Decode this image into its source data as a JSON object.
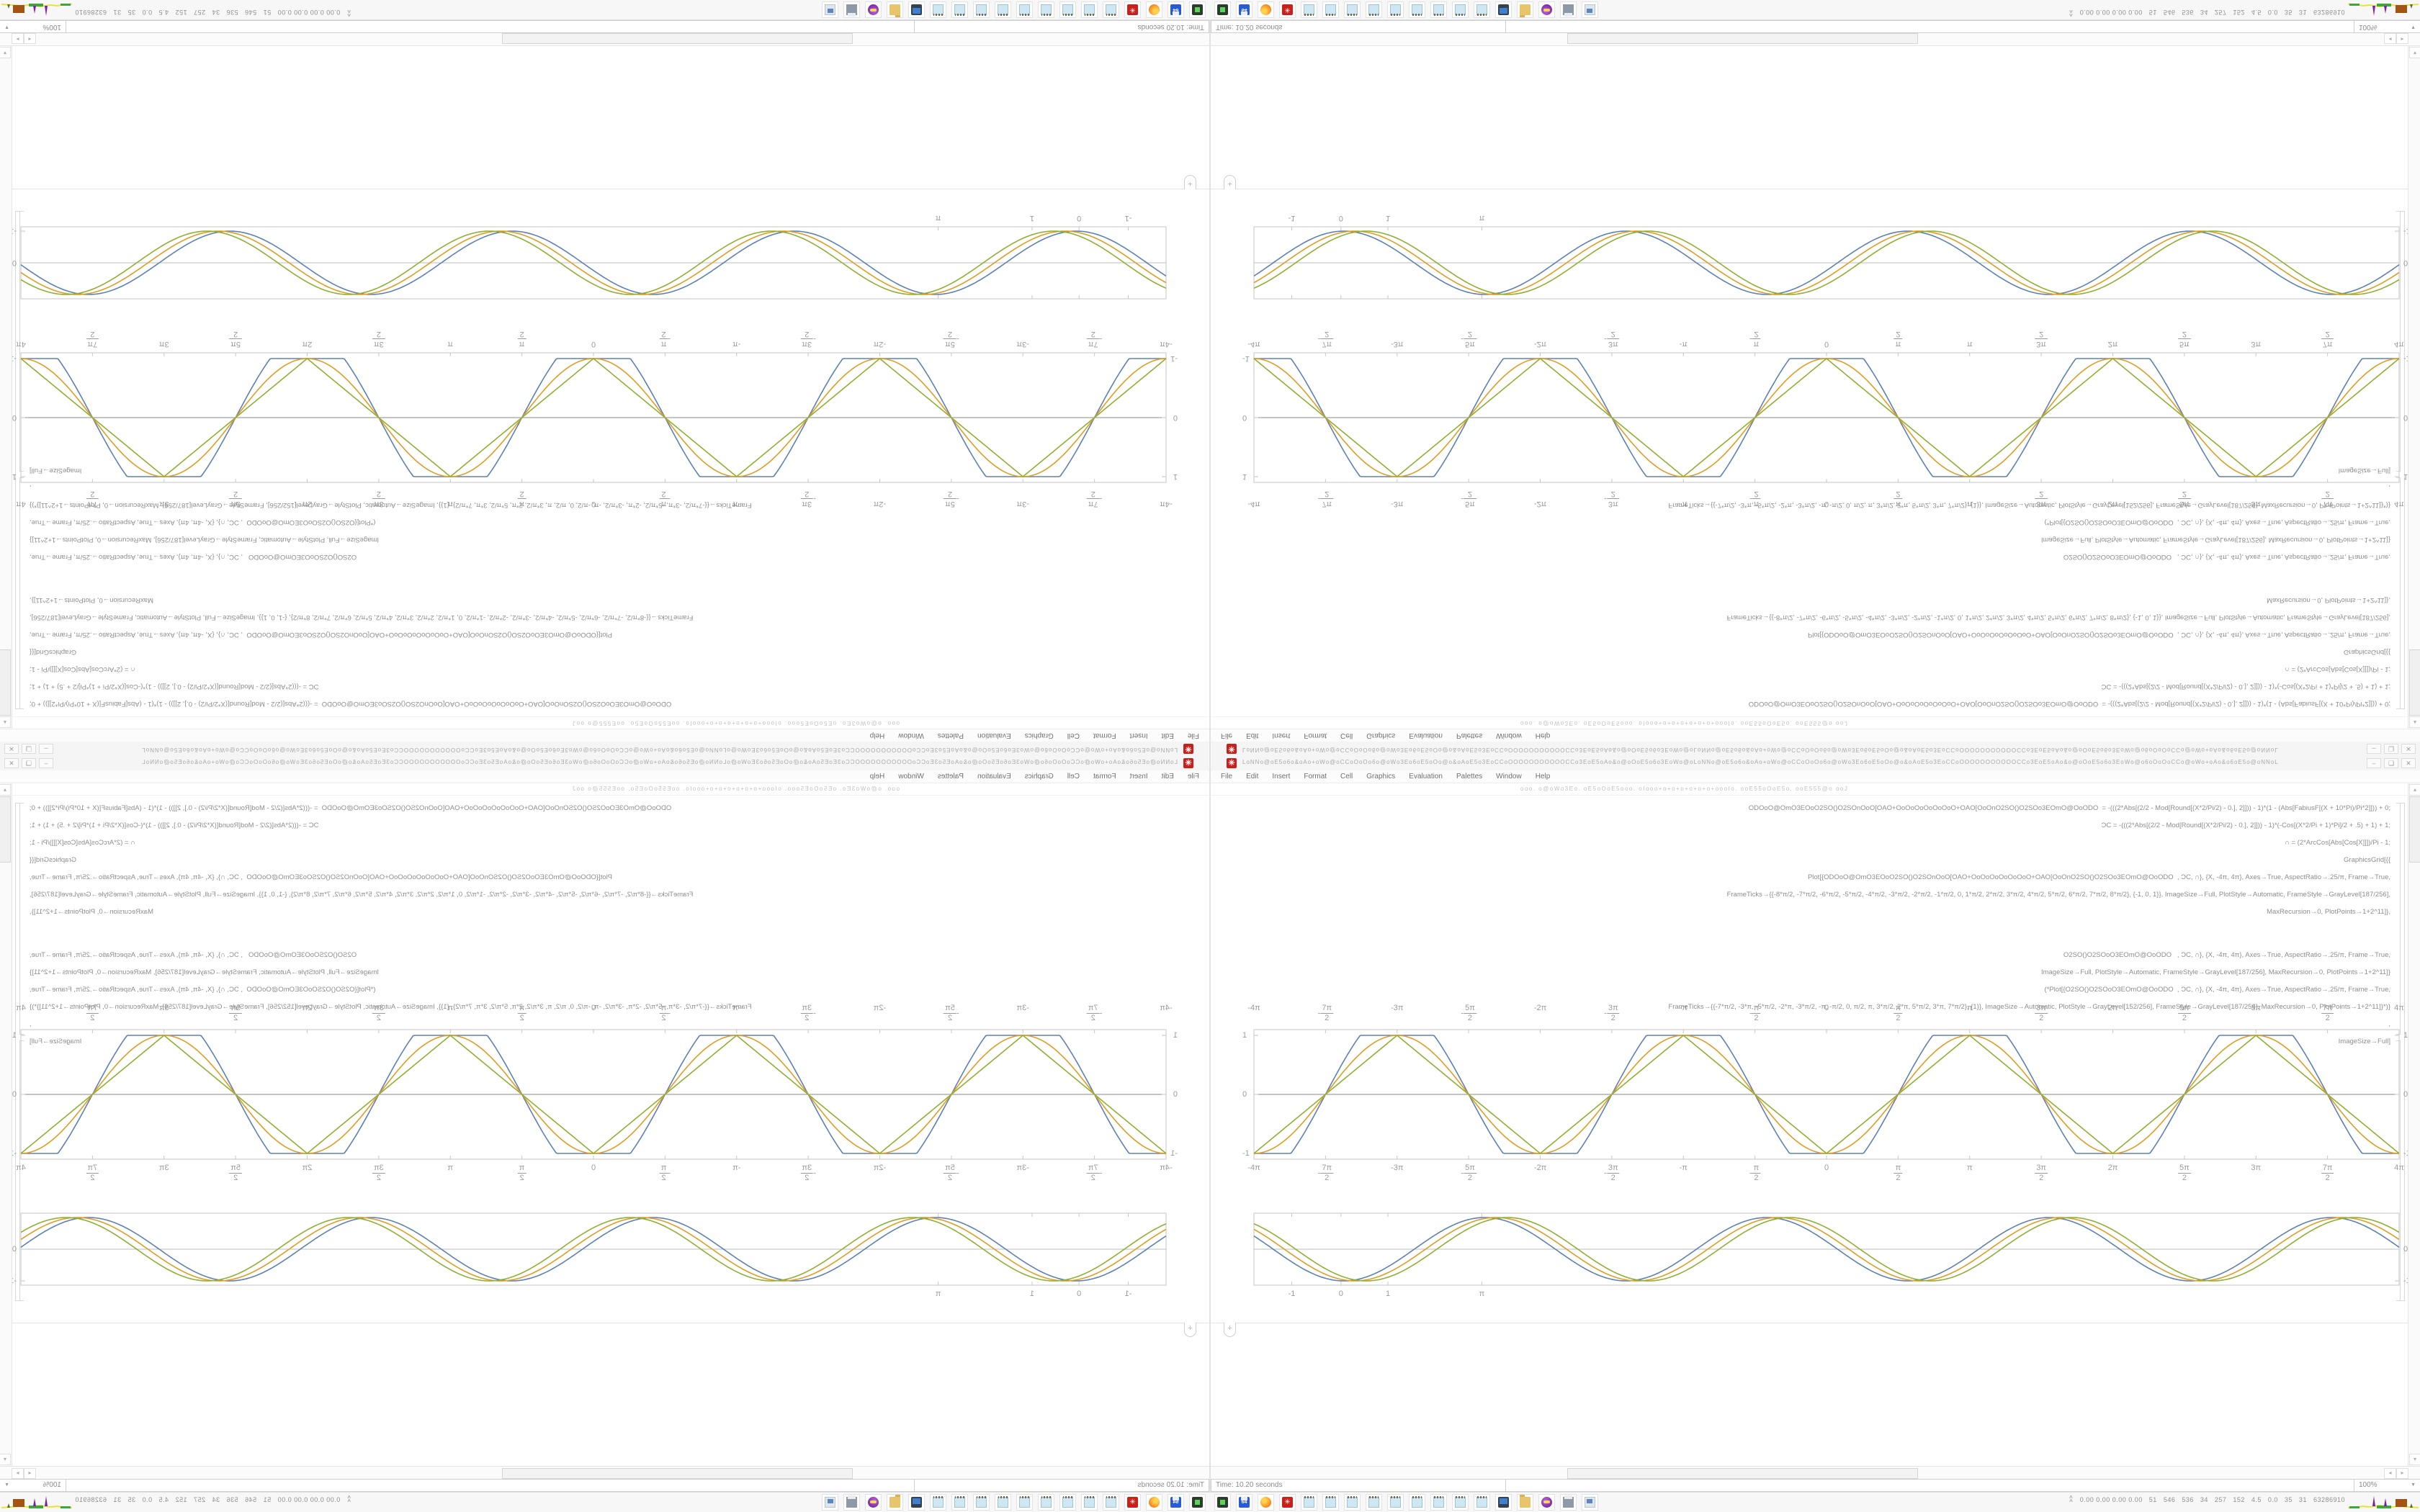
{
  "window": {
    "title_glyphs": "LoNNo@oE5o6o&oAo+oWo@oCCoOoOo6o@oWo3Eo6oE5oOo@o&oAoE5o3EoCCoOOOOOOOOOOOCCo3EoE5oAo&o@oOoE5o6o3EoWo@oLoNNo@oE5o6o&oAo+oWo@oCCoOoOo6o@oWo3Eo6oE5oOo@o&oAoE5o3EoCCoOOOOOOOOOOOCCo3EoE5oAo&o@oOoE5o6o3EoWo@o6oOoOoCCo@oWo+oAo&o6oE5o@oNNoL",
    "app_icon_glyph": "✳",
    "buttons": {
      "minimize": "–",
      "restore": "❏",
      "close": "✕"
    },
    "menu": [
      "File",
      "Edit",
      "Insert",
      "Format",
      "Cell",
      "Graphics",
      "Evaluation",
      "Palettes",
      "Window",
      "Help"
    ],
    "toolbar_glyphs": "ooo. o@oWo3Eo. oE5oOoE5ooo. oIooo+o+o+o+o+o+o+oooIo. ooE55oOoE5o. ooE555@o ooJ",
    "code_cell_1": [
      "ODOoO@OmO3EOoO2SO()O2SOnOoO[OAO+OoOoOoOoOoOoO+OAO[OoOnO2SO()O2SOo3EOmO@OoODO  = -(((2*Abs[(2/2 - Mod[Round[(X*2/Pi/2) - 0.], 2]])) - 1)*(1 - (Abs[FabiusF[(X + 10*Pi)/Pi*2]])) + 0;",
      "ƆC = -(((2*Abs[(2/2 - Mod[Round[(X*2/Pi/2) - 0.], 2]])) - 1)*(-Cos[(X*2/Pi + 1)*Pi]/2 + .5) + 1) + 1;",
      "∩ = (2*ArcCos[Abs[Cos[X]]])/Pi - 1;",
      "GraphicsGrid[{{",
      "Plot[{ODOoO@OmO3EOoO2SO()O2SOnOoO[OAO+OoOoOoOoOoOoO+OAO[OoOnO2SO()O2SOo3EOmO@OoODO  , ƆC, ∩}, {X, -4π, 4π}, Axes→True, AspectRatio→.25/π, Frame→True,",
      "FrameTicks→{{-8*π/2, -7*π/2, -6*π/2, -5*π/2, -4*π/2, -3*π/2, -2*π/2, -1*π/2, 0, 1*π/2, 2*π/2, 3*π/2, 4*π/2, 5*π/2, 6*π/2, 7*π/2, 8*π/2}, {-1, 0, 1}}, ImageSize→Full, PlotStyle→Automatic, FrameStyle→GrayLevel[187/256],",
      "MaxRecursion→0, PlotPoints→1+2^11]},"
    ],
    "code_cell_2": [
      "O2SO()O2SOoO3EOmO@OoODO   , ƆC, ∩}, {X, -4π, 4π}, Axes→True, AspectRatio→.25/π, Frame→True,",
      "ImageSize→Full, PlotStyle→Automatic, FrameStyle→GrayLevel[187/256], MaxRecursion→0, PlotPoints→1+2^11]}",
      "(*Plot[{O2SO()O2SOoO3EOmO@OoODO  , ƆC, ∩}, {X, -4π, 4π}, Axes→True, AspectRatio→.25/π, Frame→True,",
      "FrameTicks→{{-7*π/2, -3*π, -5*π/2, -2*π, -3*π/2, -π, -π/2, 0, π/2, π, 3*π/2, 2*π, 5*π/2, 3*π, 7*π/2}, {1}}, ImageSize→Automatic, PlotStyle→GrayLevel[152/256], FrameStyle→GrayLevel[187/256], MaxRecursion→0, PlotPoints→1+2^11]}*)}",
      ",",
      "ImageSize→Full]"
    ],
    "insert_plus": "+",
    "scrollbar": {
      "up": "▴",
      "down": "▾",
      "left": "◂",
      "right": "▸"
    },
    "status": {
      "time_label": "Time: 10.20 seconds",
      "zoom_level": "100%",
      "zoom_caret": "▼"
    }
  },
  "chart_data": [
    {
      "type": "line",
      "title": "",
      "xlabel": "",
      "ylabel": "",
      "x_range_pi": [
        -4,
        4
      ],
      "x_ticks": [
        "-4π",
        "-7π/2",
        "-3π",
        "-5π/2",
        "-2π",
        "-3π/2",
        "-π",
        "-π/2",
        "0",
        "π/2",
        "π",
        "3π/2",
        "2π",
        "5π/2",
        "3π",
        "7π/2",
        "4π"
      ],
      "y_ticks": [
        "1",
        "0",
        "-1"
      ],
      "ylim": [
        -1,
        1
      ],
      "grid": false,
      "legend": "none",
      "series": [
        {
          "name": "fabius-flat-top-wave",
          "color": "#5e81b5",
          "shape": "clipped-cosine",
          "period": "2π",
          "amplitude": 1
        },
        {
          "name": "raised-cosine-wave",
          "color": "#e19c24",
          "shape": "cosine",
          "period": "2π",
          "amplitude": 1
        },
        {
          "name": "triangle-wave",
          "color": "#8fb032",
          "shape": "triangle",
          "period": "2π",
          "amplitude": 1
        }
      ]
    },
    {
      "type": "line",
      "title": "",
      "xlabel": "",
      "ylabel": "",
      "x_ticks": [
        {
          "label": "-1",
          "pos": 0.033
        },
        {
          "label": "0",
          "pos": 0.076
        },
        {
          "label": "1",
          "pos": 0.117
        },
        {
          "label": "π",
          "pos": 0.199
        }
      ],
      "y_ticks": [
        {
          "label": "0",
          "pos": 0.5
        },
        {
          "label": "-1",
          "pos": 0.94
        }
      ],
      "x_range_units": [
        -2,
        23.5
      ],
      "ylim": [
        -1,
        1
      ],
      "grid": false,
      "legend": "none",
      "series": [
        {
          "name": "cosine-phase-0",
          "color": "#5e81b5",
          "shape": "cosine",
          "phase": 0
        },
        {
          "name": "cosine-phase-1",
          "color": "#e19c24",
          "shape": "cosine",
          "phase": 0.25
        },
        {
          "name": "cosine-phase-2",
          "color": "#8fb032",
          "shape": "cosine",
          "phase": 0.5
        }
      ]
    }
  ],
  "taskbar": {
    "icons": [
      {
        "name": "dark-app-icon",
        "cls": "ic-dark-app",
        "label": ""
      },
      {
        "name": "floppy-64-icon",
        "cls": "ic-floppy",
        "label": "64"
      },
      {
        "name": "firefox-icon",
        "cls": "ic-firefox",
        "label": ""
      },
      {
        "name": "mathematica-icon",
        "cls": "ic-mma",
        "label": "✳"
      },
      {
        "name": "notepad-icon",
        "cls": "ic-notepad",
        "label": ""
      },
      {
        "name": "notepad-icon",
        "cls": "ic-notepad",
        "label": ""
      },
      {
        "name": "notepad-icon",
        "cls": "ic-notepad",
        "label": ""
      },
      {
        "name": "notepad-icon",
        "cls": "ic-notepad",
        "label": ""
      },
      {
        "name": "notepad-icon",
        "cls": "ic-notepad",
        "label": ""
      },
      {
        "name": "notepad-icon",
        "cls": "ic-notepad",
        "label": ""
      },
      {
        "name": "notepad-icon",
        "cls": "ic-notepad",
        "label": ""
      },
      {
        "name": "notepad-icon",
        "cls": "ic-notepad",
        "label": ""
      },
      {
        "name": "notepad-icon",
        "cls": "ic-notepad",
        "label": ""
      },
      {
        "name": "monitor-icon",
        "cls": "ic-monitor",
        "label": ""
      },
      {
        "name": "folder-icon",
        "cls": "ic-folder",
        "label": ""
      },
      {
        "name": "purple-app-icon",
        "cls": "ic-purple",
        "label": ""
      },
      {
        "name": "print-queue-icon",
        "cls": "ic-print",
        "label": ""
      },
      {
        "name": "show-desktop-icon",
        "cls": "ic-desktop",
        "label": ""
      }
    ],
    "tray": {
      "chevron": "^",
      "stats": "0.00 0.00 0.00 0.00   51   546   536   34   257   152   4.5   0.0   35   31   63286910"
    }
  }
}
